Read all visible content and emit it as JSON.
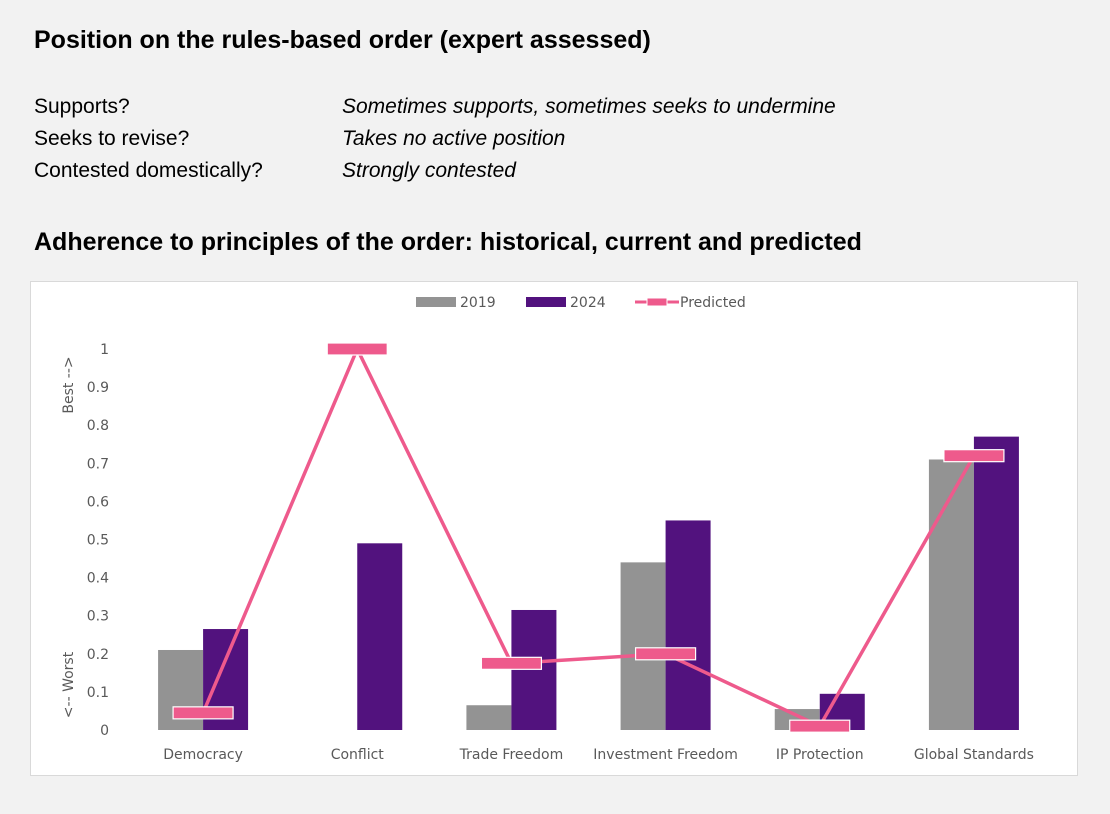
{
  "header": {
    "title": "Position on the rules-based order (expert assessed)",
    "rows": [
      {
        "question": "Supports?",
        "answer": "Sometimes supports, sometimes seeks to undermine"
      },
      {
        "question": "Seeks to revise?",
        "answer": "Takes no active position"
      },
      {
        "question": "Contested domestically?",
        "answer": "Strongly contested"
      }
    ]
  },
  "chart_data": {
    "type": "bar",
    "title": "Adherence to principles of the order: historical, current and predicted",
    "categories": [
      "Democracy",
      "Conflict",
      "Trade Freedom",
      "Investment Freedom",
      "IP Protection",
      "Global Standards"
    ],
    "series": [
      {
        "name": "2019",
        "kind": "bar",
        "color": "#939393",
        "values": [
          0.21,
          0,
          0.065,
          0.44,
          0.055,
          0.71
        ]
      },
      {
        "name": "2024",
        "kind": "bar",
        "color": "#52127e",
        "values": [
          0.265,
          0.49,
          0.315,
          0.55,
          0.095,
          0.77
        ]
      },
      {
        "name": "Predicted",
        "kind": "line",
        "color": "#ee5a8c",
        "values": [
          0.045,
          1.0,
          0.175,
          0.2,
          0.01,
          0.72
        ]
      }
    ],
    "ylim": [
      0,
      1
    ],
    "yticks": [
      "0",
      "0.1",
      "0.2",
      "0.3",
      "0.4",
      "0.5",
      "0.6",
      "0.7",
      "0.8",
      "0.9",
      "1"
    ],
    "ylabel_top": "Best -->",
    "ylabel_bottom": "<-- Worst",
    "legend_position": "top-center",
    "grid": false
  }
}
